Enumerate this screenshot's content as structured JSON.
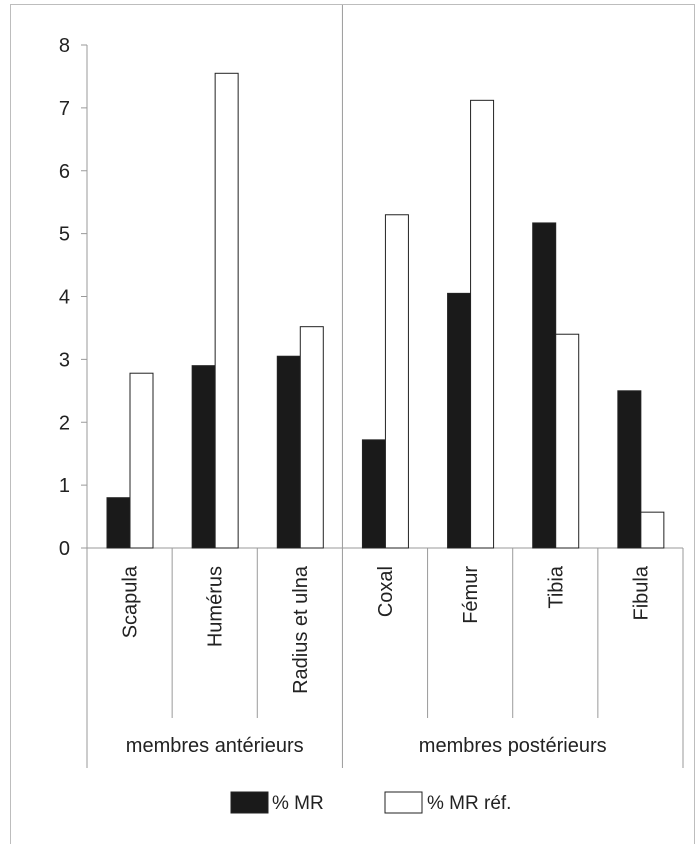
{
  "chart_data": {
    "type": "bar",
    "categories": [
      "Scapula",
      "Humérus",
      "Radius et ulna",
      "Coxal",
      "Fémur",
      "Tibia",
      "Fibula"
    ],
    "groups": [
      {
        "label": "membres antérieurs",
        "count": 3
      },
      {
        "label": "membres postérieurs",
        "count": 4
      }
    ],
    "series": [
      {
        "name": "% MR",
        "color": "#1a1a1a",
        "values": [
          0.8,
          2.9,
          3.05,
          1.72,
          4.05,
          5.17,
          2.5
        ]
      },
      {
        "name": "% MR réf.",
        "color": "#ffffff",
        "values": [
          2.78,
          7.55,
          3.52,
          5.3,
          7.12,
          3.4,
          0.57
        ]
      }
    ],
    "yticks": [
      "0",
      "1",
      "2",
      "3",
      "4",
      "5",
      "6",
      "7",
      "8"
    ],
    "ylim": [
      0,
      8
    ],
    "title": "",
    "xlabel": "",
    "ylabel": "",
    "legend": "bottom"
  }
}
